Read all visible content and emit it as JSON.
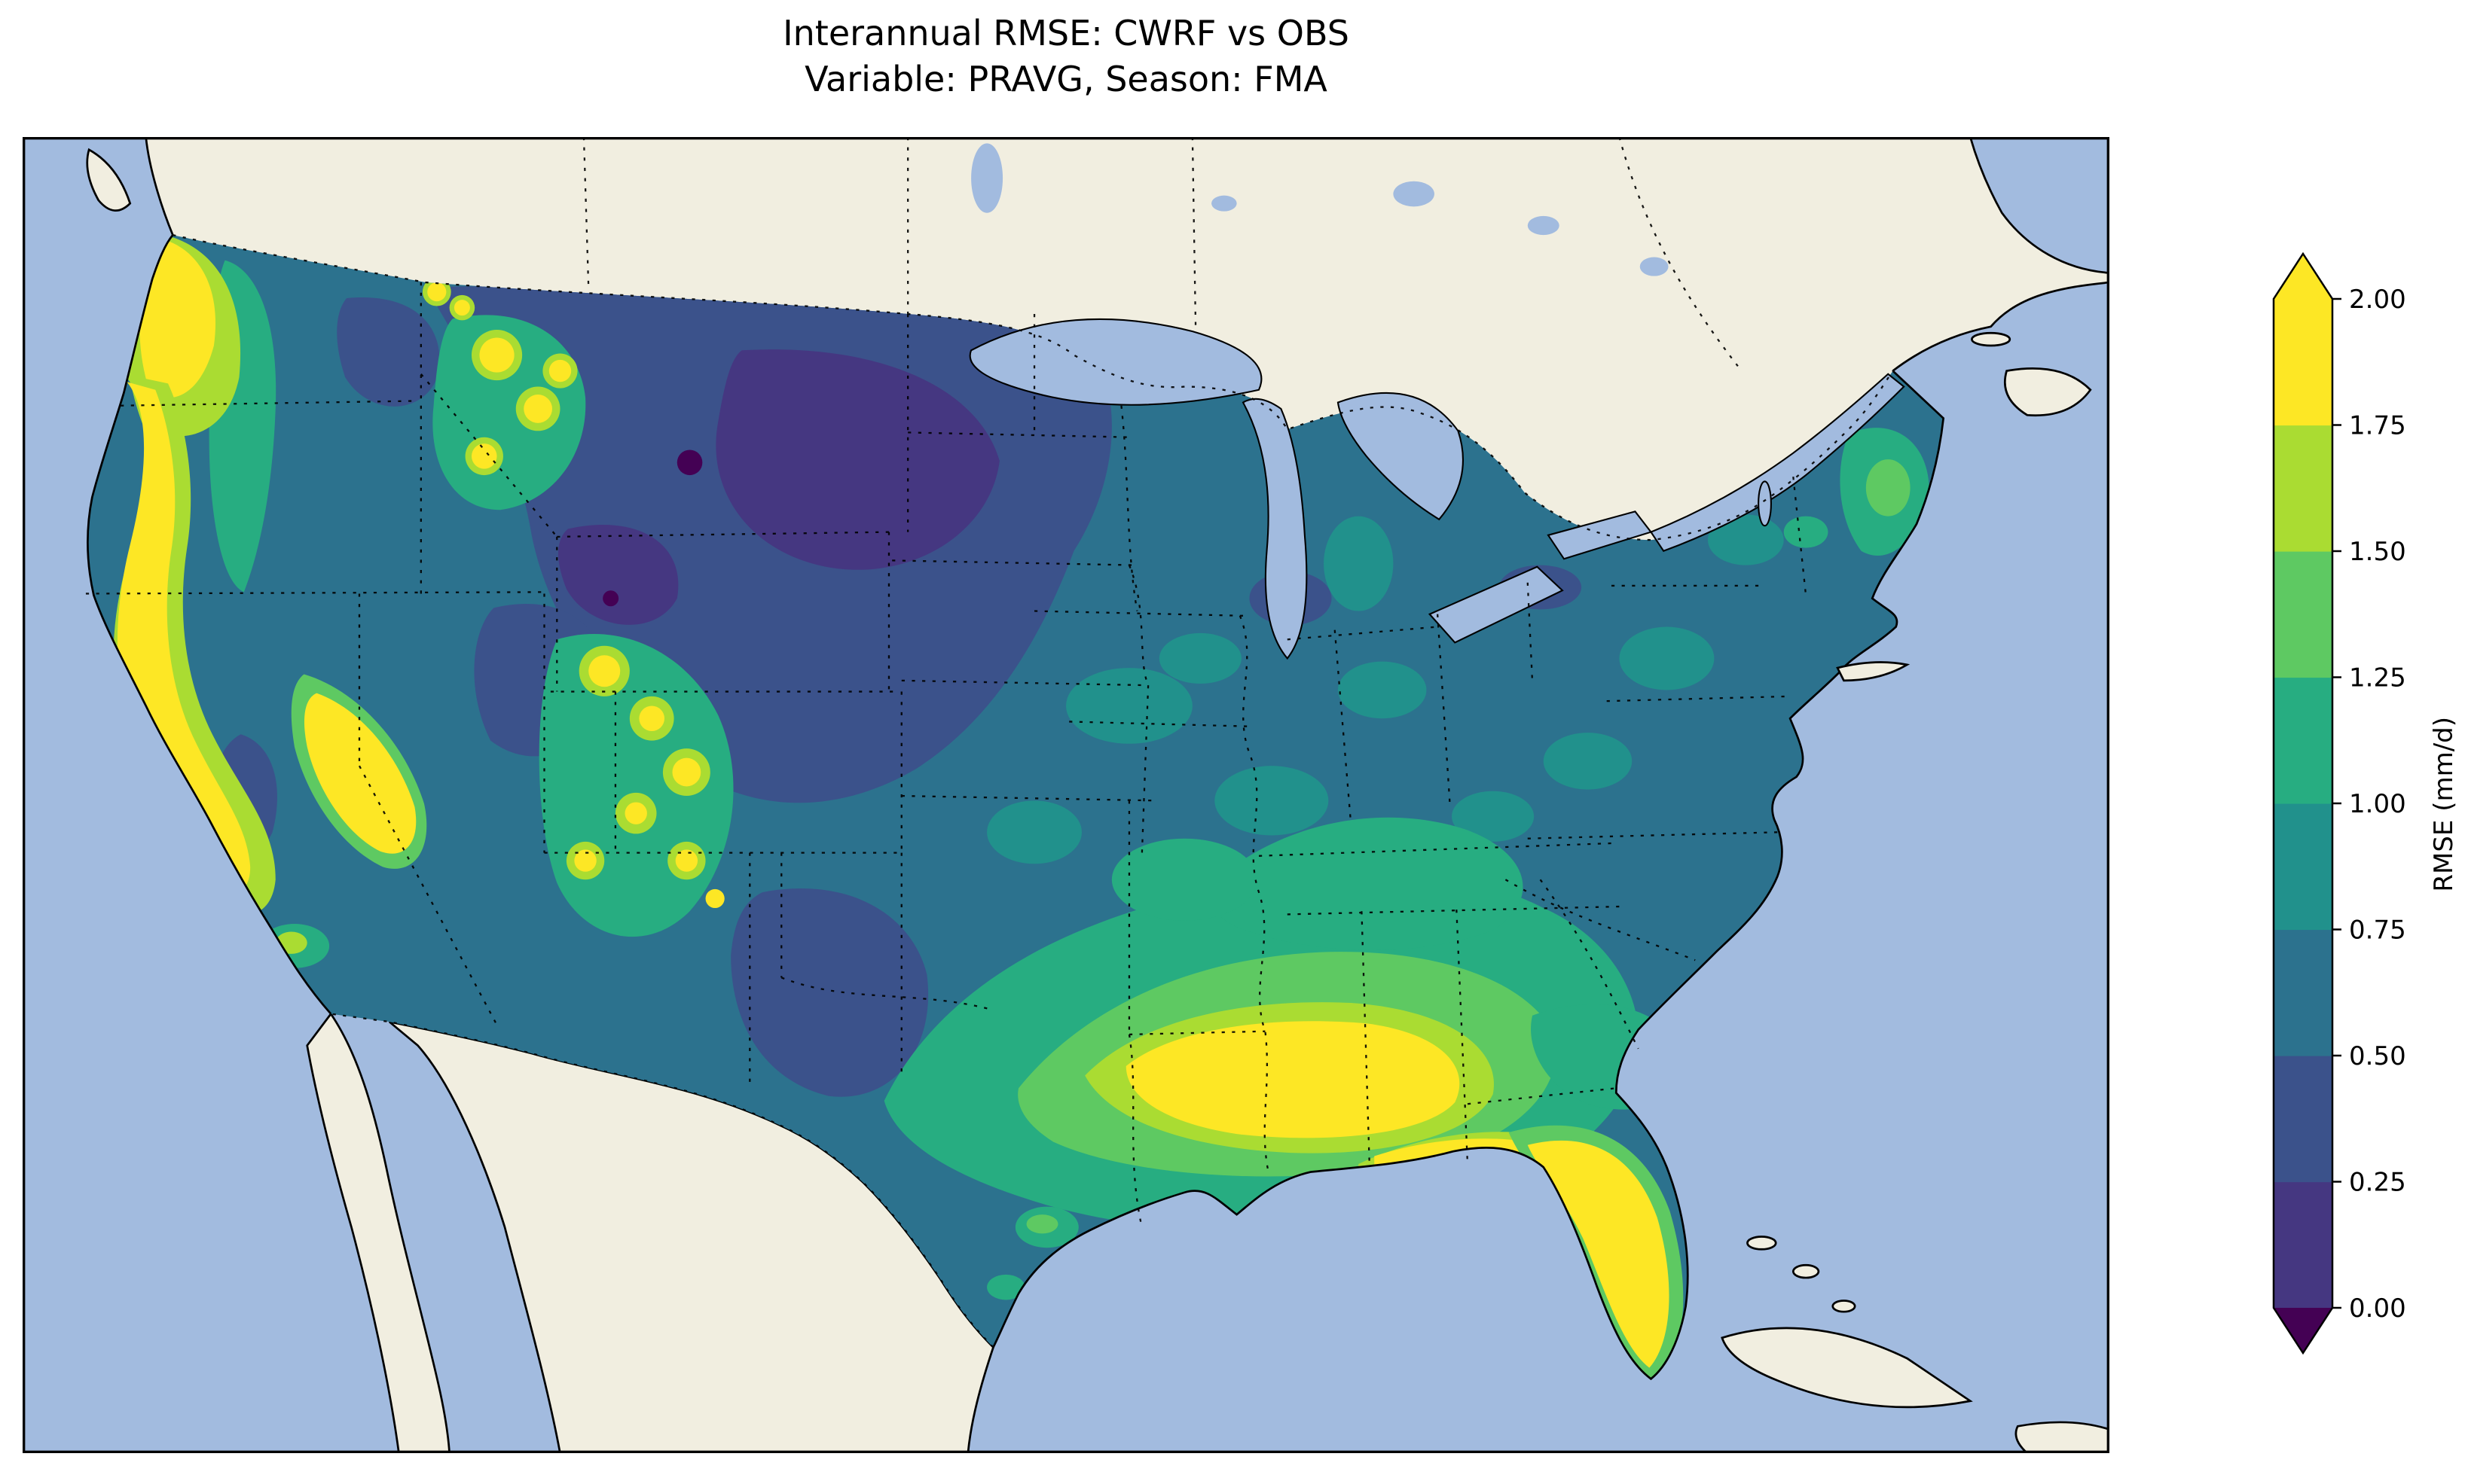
{
  "figure": {
    "title_line1": "Interannual RMSE: CWRF vs OBS",
    "title_line2": "Variable: PRAVG, Season: FMA"
  },
  "chart_data": {
    "type": "heatmap",
    "subtype": "filled-contour map over contiguous United States",
    "title": "Interannual RMSE: CWRF vs OBS",
    "subtitle": "Variable: PRAVG, Season: FMA",
    "comparison": "CWRF vs OBS",
    "variable": "PRAVG",
    "season": "FMA",
    "colorbar": {
      "label": "RMSE (mm/d)",
      "tick_labels": [
        "0.00",
        "0.25",
        "0.50",
        "0.75",
        "1.00",
        "1.25",
        "1.50",
        "1.75",
        "2.00"
      ],
      "levels": [
        0.0,
        0.25,
        0.5,
        0.75,
        1.0,
        1.25,
        1.5,
        1.75,
        2.0
      ],
      "extend": "both",
      "band_colors": [
        "#453781",
        "#3b528b",
        "#2c728e",
        "#21918c",
        "#27ad81",
        "#5ec962",
        "#aadc32",
        "#fde725"
      ],
      "under_color": "#440154",
      "over_color": "#fde725",
      "orientation": "vertical-right"
    },
    "colors": {
      "ocean": "#a2bbdf",
      "land": "#f1eee0",
      "lake": "#a2bbdf",
      "coastline": "#000000",
      "under": "#440154",
      "b0": "#453781",
      "b1": "#3b528b",
      "b2": "#2c728e",
      "b3": "#21918c",
      "b4": "#27ad81",
      "b5": "#5ec962",
      "b6": "#aadc32",
      "b7": "#fde725"
    },
    "region_values_mm_per_day": [
      {
        "region": "Pacific coastal strip WA/OR/CA",
        "rmse": "1.75 to >2.00"
      },
      {
        "region": "Sierra Nevada (California)",
        "rmse": "1.75 to >2.00"
      },
      {
        "region": "California Central Valley",
        "rmse": "0.25-0.50"
      },
      {
        "region": "Cascades interior (WA/OR)",
        "rmse": "1.00-1.50"
      },
      {
        "region": "Central Washington basin",
        "rmse": "0.25-0.50"
      },
      {
        "region": "Great Basin (Nevada/Utah)",
        "rmse": "0.25-0.75"
      },
      {
        "region": "Northern Rockies peaks (ID/W MT)",
        "rmse": "1.50 to >2.00 spots"
      },
      {
        "region": "Montana/Wyoming/Dakotas/Nebraska plains",
        "rmse": "0.00-0.50"
      },
      {
        "region": "Four Corners mountains (UT/CO/AZ/NM)",
        "rmse": "1.50 to >2.00 spots"
      },
      {
        "region": "West Texas / eastern New Mexico",
        "rmse": "0.25-0.50"
      },
      {
        "region": "Central plains (KS/OK)",
        "rmse": "0.50-0.75"
      },
      {
        "region": "Upper Midwest / Great Lakes",
        "rmse": "0.50-0.75"
      },
      {
        "region": "Northeast US (NY/PA/New England)",
        "rmse": "0.50-1.00"
      },
      {
        "region": "Maine",
        "rmse": "1.00-1.50"
      },
      {
        "region": "Tennessee/Kentucky valley",
        "rmse": "1.00-1.25"
      },
      {
        "region": "Lower Mississippi valley & Gulf Coast (E TX/LA/AR/MS/AL)",
        "rmse": "1.75 to >2.00"
      },
      {
        "region": "Southeast (GA/SC coastal plain)",
        "rmse": "1.00-1.50"
      },
      {
        "region": "Florida peninsula",
        "rmse": "1.50 to >2.00"
      },
      {
        "region": "South Texas coast",
        "rmse": "0.75-1.25"
      }
    ],
    "axes": {
      "frame": true,
      "x_ticks": "none",
      "y_ticks": "none"
    }
  }
}
